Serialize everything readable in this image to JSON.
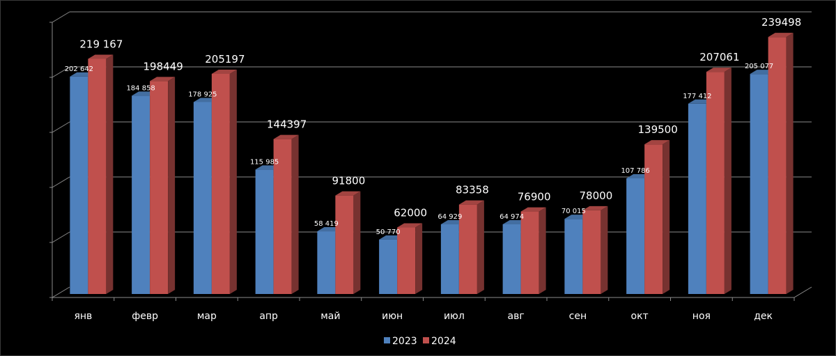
{
  "chart_data": {
    "type": "bar",
    "title": "",
    "xlabel": "",
    "ylabel": "",
    "ylim": [
      0,
      250000
    ],
    "grid": true,
    "legend_position": "bottom",
    "categories": [
      "янв",
      "февр",
      "мар",
      "апр",
      "май",
      "июн",
      "июл",
      "авг",
      "сен",
      "окт",
      "ноя",
      "дек"
    ],
    "series": [
      {
        "name": "2023",
        "color": "#4f81bd",
        "values": [
          202642,
          184858,
          178925,
          115985,
          58419,
          50770,
          64929,
          64974,
          70015,
          107786,
          177412,
          205077
        ],
        "labels": [
          "202 642",
          "184 858",
          "178 925",
          "115 985",
          "58 419",
          "50 770",
          "64 929",
          "64 974",
          "70 015",
          "107 786",
          "177 412",
          "205 077"
        ]
      },
      {
        "name": "2024",
        "color": "#c0504d",
        "values": [
          219167,
          198449,
          205197,
          144397,
          91800,
          62000,
          83358,
          76900,
          78000,
          139500,
          207061,
          239498
        ],
        "labels": [
          "219 167",
          "198449",
          "205197",
          "144397",
          "91800",
          "62000",
          "83358",
          "76900",
          "78000",
          "139500",
          "207061",
          "239498"
        ]
      }
    ]
  }
}
